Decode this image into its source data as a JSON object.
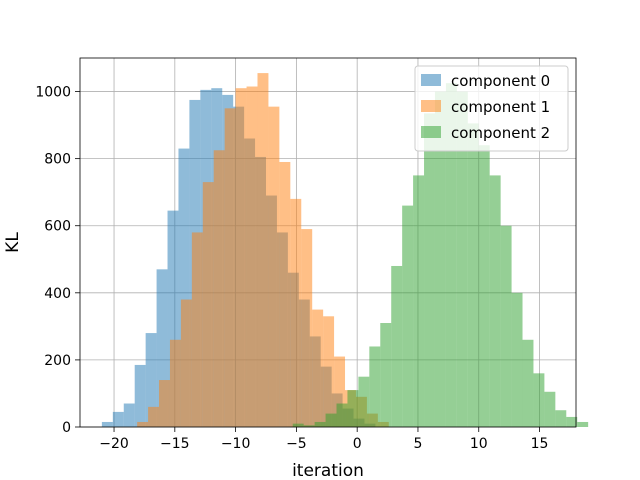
{
  "chart_data": {
    "type": "bar",
    "subtype": "overlapping-histogram",
    "xlabel": "iteration",
    "ylabel": "KL",
    "xlim": [
      -22.8,
      18.0
    ],
    "ylim": [
      0,
      1100
    ],
    "xticks": [
      -20,
      -15,
      -10,
      -5,
      0,
      5,
      10,
      15
    ],
    "yticks": [
      0,
      200,
      400,
      600,
      800,
      1000
    ],
    "grid": true,
    "legend_position": "top-right",
    "bar_alpha": 0.5,
    "series": [
      {
        "name": "component 0",
        "color": "#1f77b4",
        "bin_start": -21.0,
        "bin_width": 0.9,
        "values": [
          15,
          45,
          70,
          185,
          280,
          470,
          645,
          830,
          975,
          1005,
          1010,
          990,
          955,
          860,
          805,
          690,
          580,
          460,
          380,
          270,
          180,
          100,
          55,
          25,
          10
        ]
      },
      {
        "name": "component 1",
        "color": "#ff7f0e",
        "bin_start": -18.1,
        "bin_width": 0.9,
        "values": [
          15,
          60,
          140,
          260,
          380,
          580,
          730,
          825,
          950,
          1010,
          1015,
          1055,
          955,
          790,
          680,
          590,
          350,
          330,
          210,
          110,
          90,
          40,
          15
        ]
      },
      {
        "name": "component 2",
        "color": "#2ca02c",
        "bin_start": -5.3,
        "bin_width": 0.9,
        "values": [
          10,
          5,
          15,
          40,
          70,
          110,
          150,
          240,
          310,
          480,
          660,
          750,
          935,
          1000,
          1025,
          1000,
          905,
          840,
          750,
          600,
          400,
          260,
          160,
          105,
          50,
          30,
          15
        ]
      }
    ]
  }
}
